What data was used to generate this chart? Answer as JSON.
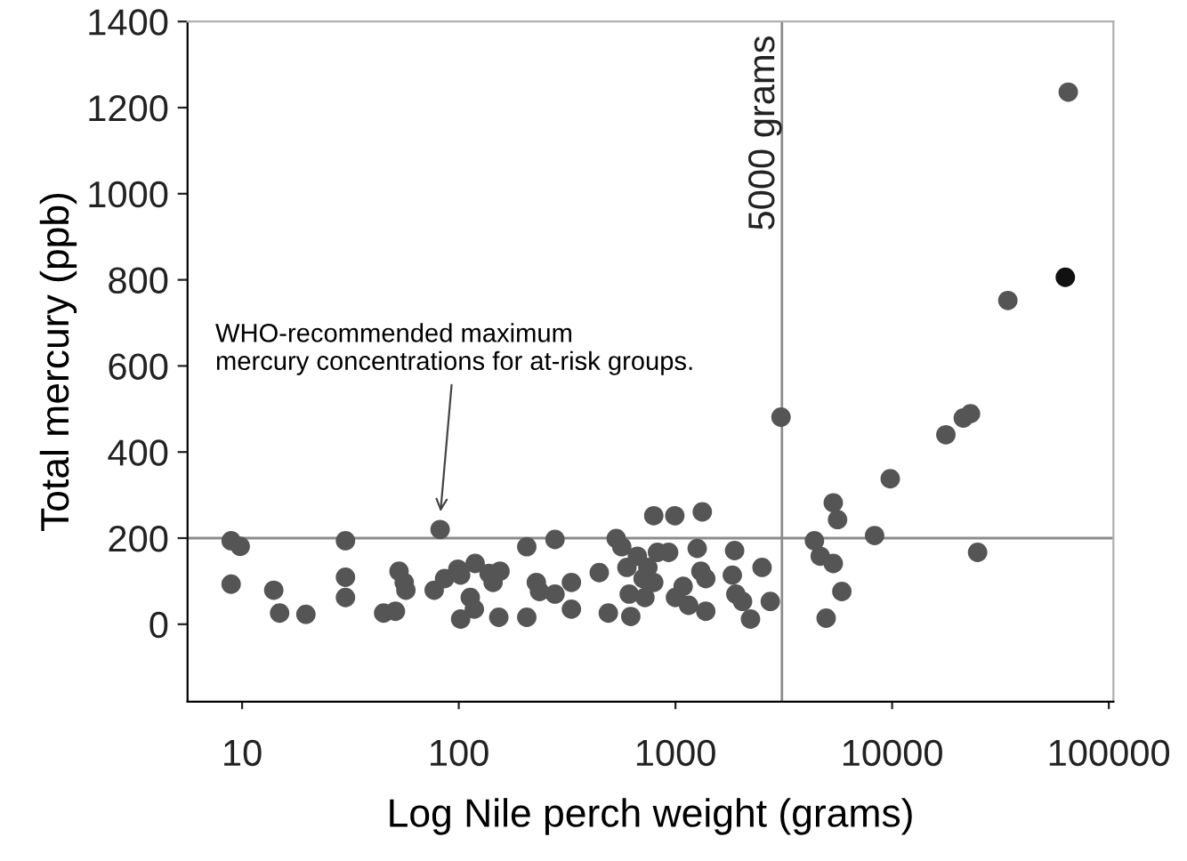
{
  "chart_data": {
    "type": "scatter",
    "xlabel": "Log Nile perch weight (grams)",
    "ylabel": "Total mercury (ppb)",
    "log": "x",
    "xlim": [
      5.6,
      105000
    ],
    "ylim": [
      -180,
      1400
    ],
    "xticks": [
      {
        "value": 10,
        "label": "10"
      },
      {
        "value": 100,
        "label": "100"
      },
      {
        "value": 1000,
        "label": "1000"
      },
      {
        "value": 10000,
        "label": "10000"
      },
      {
        "value": 100000,
        "label": "100000"
      }
    ],
    "yticks": [
      0,
      200,
      400,
      600,
      800,
      1000,
      1200,
      1400
    ],
    "marker": "circle",
    "grid": false,
    "legend": false,
    "series": [
      {
        "color": "#555555",
        "x": [
          8.9,
          9.8,
          8.9,
          14,
          14.9,
          19.7,
          30,
          30,
          30,
          45,
          51,
          53,
          56,
          57,
          77,
          82,
          86,
          99,
          102,
          102,
          113,
          118,
          119,
          138,
          144,
          155,
          153,
          206,
          206,
          228,
          236,
          278,
          278,
          331,
          331,
          445,
          490,
          533,
          565,
          597,
          612,
          622,
          667,
          709,
          723,
          746,
          794,
          794,
          826,
          993,
          930,
          1000,
          1085,
          1150,
          1260,
          1330,
          1310,
          1380,
          1380,
          1875,
          1830,
          1900,
          2040,
          2220,
          2510,
          2740,
          3070,
          4380,
          4660,
          5350,
          5350,
          5600,
          4960,
          5860,
          8300,
          9800,
          17700,
          21300,
          23000,
          24800,
          34200,
          65000
        ],
        "values": [
          194,
          181,
          93,
          79,
          26,
          23,
          194,
          109,
          62,
          26,
          30,
          123,
          97,
          79,
          79,
          220,
          106,
          128,
          114,
          12,
          62,
          35,
          141,
          118,
          97,
          123,
          16,
          180,
          16,
          97,
          76,
          197,
          70,
          97,
          35,
          120,
          26,
          199,
          180,
          132,
          70,
          18,
          158,
          106,
          62,
          132,
          252,
          97,
          167,
          252,
          167,
          62,
          88,
          44,
          176,
          261,
          123,
          106,
          30,
          171,
          114,
          70,
          53,
          12,
          132,
          53,
          481,
          194,
          158,
          141,
          282,
          243,
          14,
          76,
          206,
          338,
          440,
          479,
          489,
          167,
          752,
          1236
        ]
      },
      {
        "color": "#111111",
        "x": [
          63000
        ],
        "values": [
          806
        ]
      }
    ],
    "ref_lines": [
      {
        "axis": "y",
        "value": 200,
        "color": "#8c8c8c"
      },
      {
        "axis": "x",
        "value": 3100,
        "label": "5000 grams",
        "color": "#8c8c8c"
      }
    ],
    "annotations": [
      {
        "text": "WHO-recommended maximum\nmercury concentrations for at-risk groups.",
        "x": 82,
        "y": 250
      }
    ]
  }
}
